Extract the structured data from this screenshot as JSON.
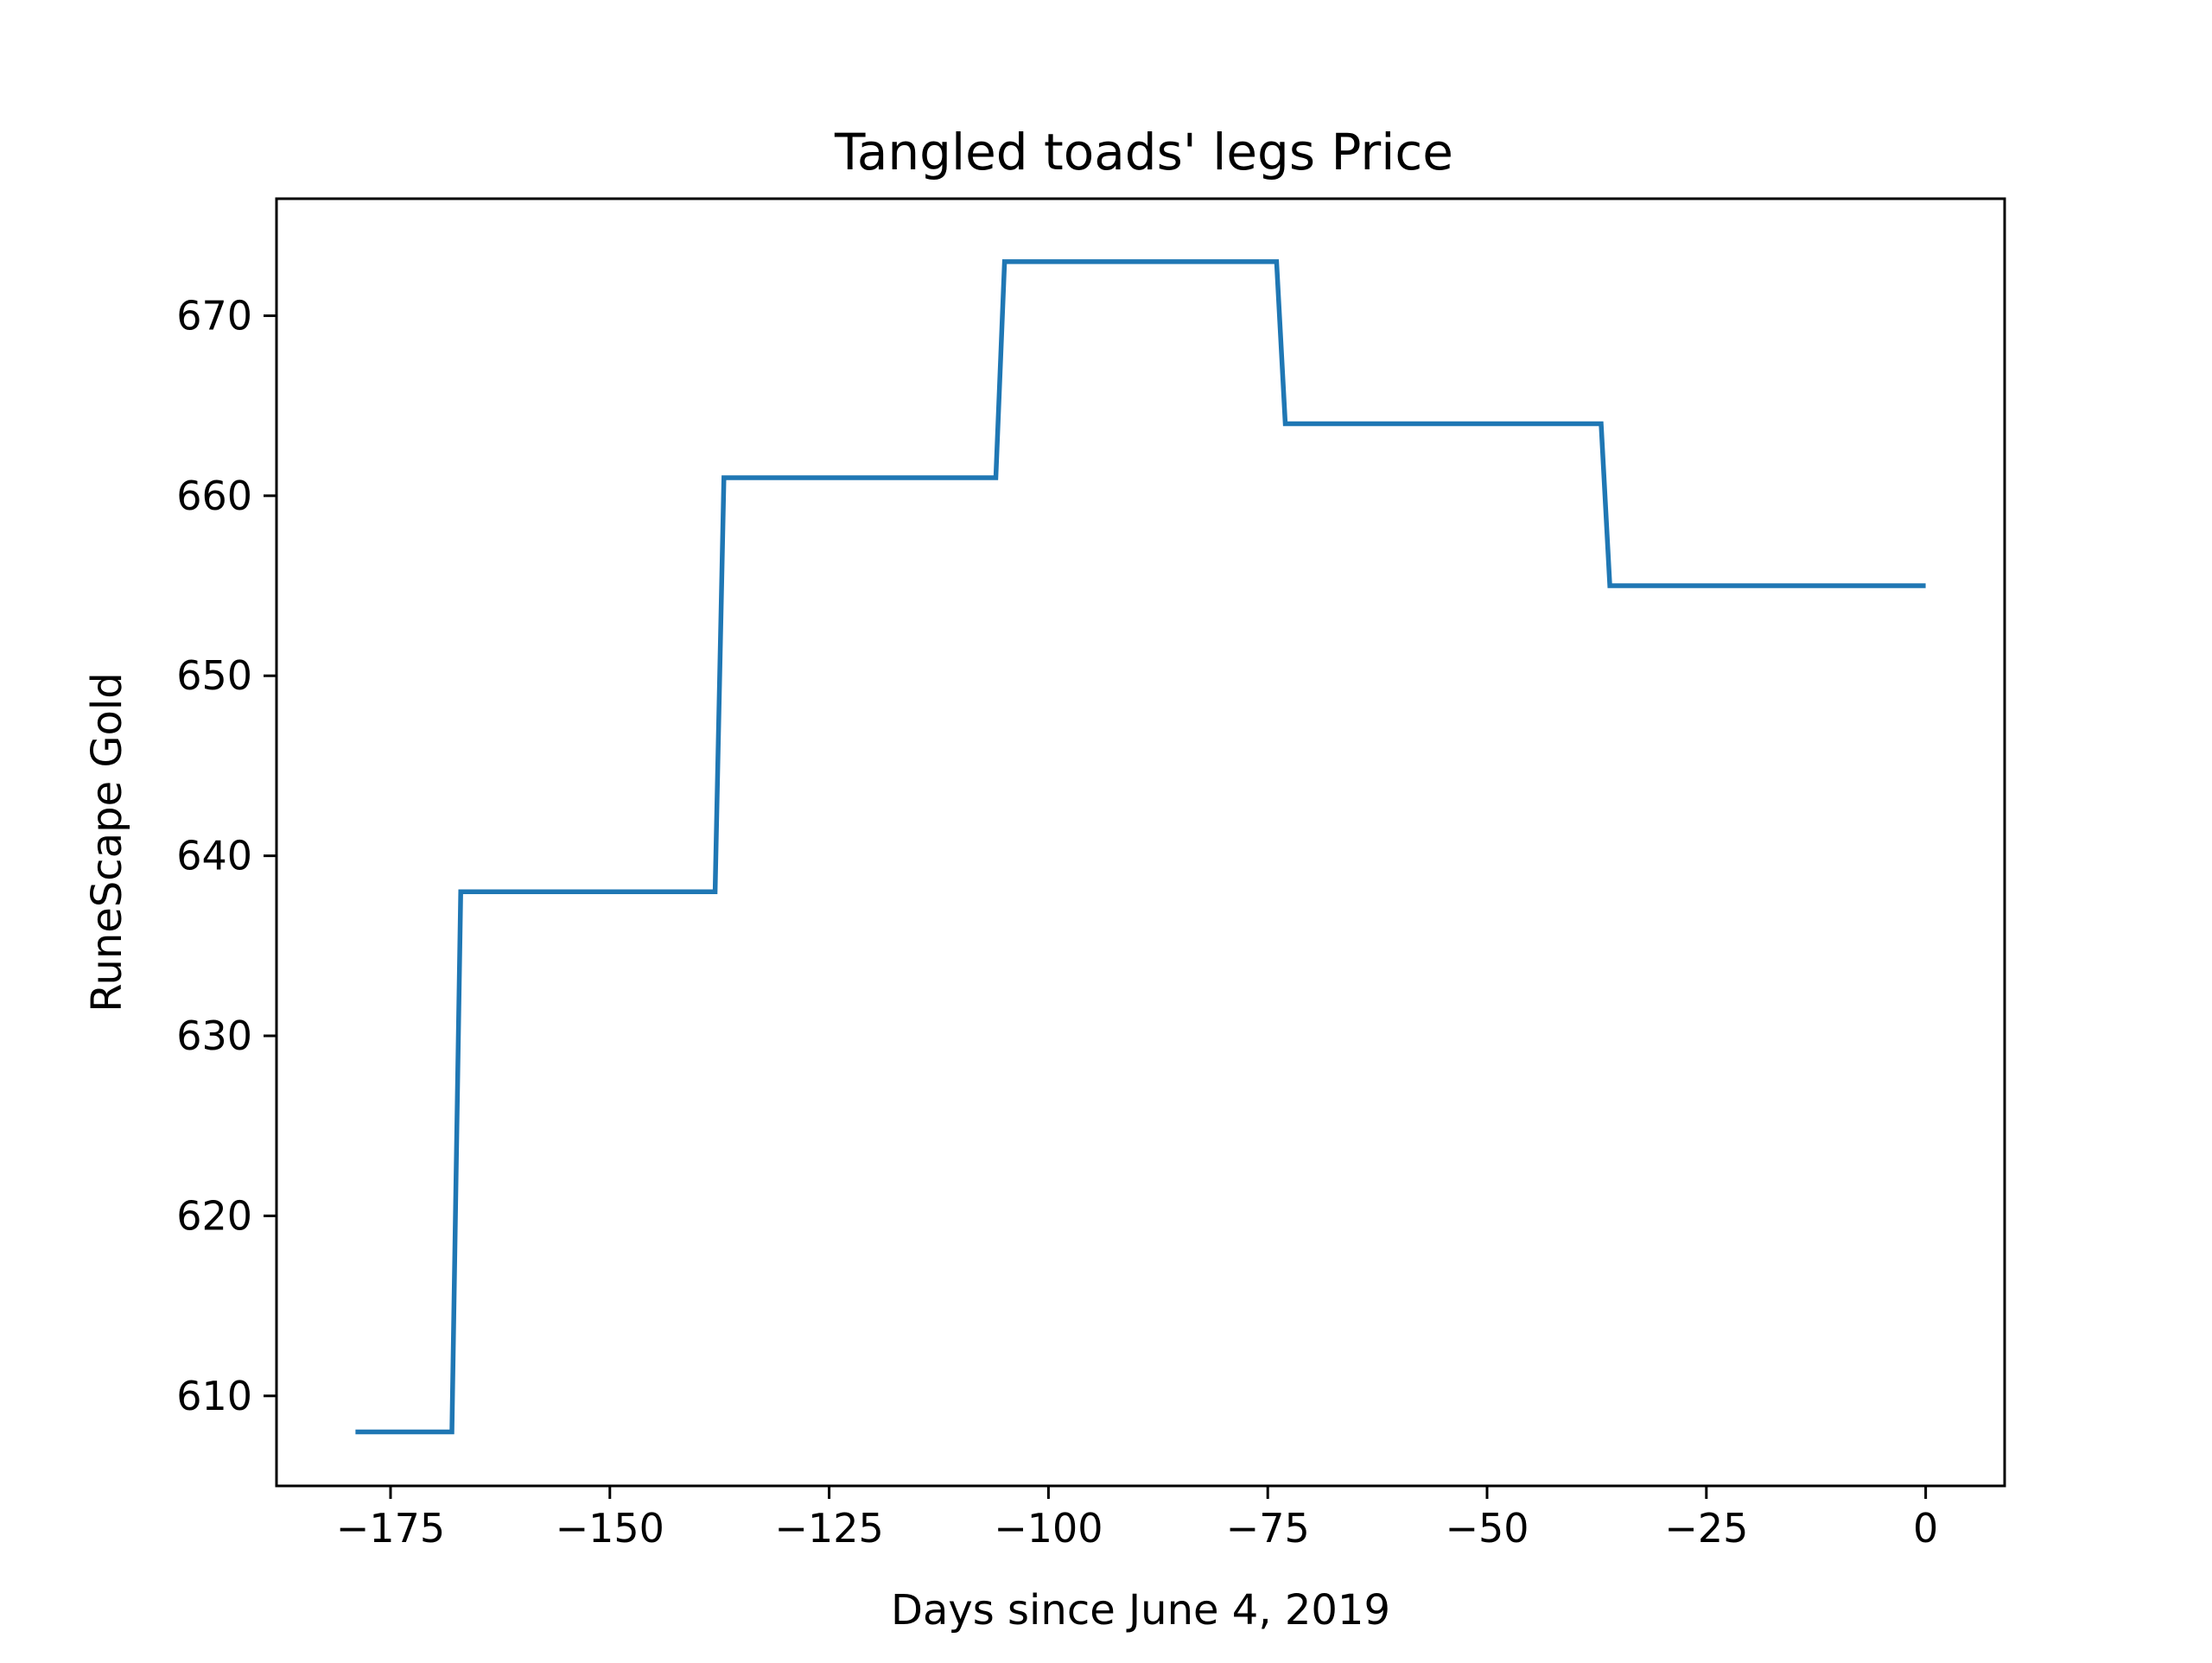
{
  "chart_data": {
    "type": "line",
    "title": "Tangled toads' legs Price",
    "xlabel": "Days since June 4, 2019",
    "ylabel": "RuneScape Gold",
    "xlim": [
      -188,
      9
    ],
    "ylim": [
      605,
      676.5
    ],
    "xticks": [
      {
        "value": -175,
        "label": "−175"
      },
      {
        "value": -150,
        "label": "−150"
      },
      {
        "value": -125,
        "label": "−125"
      },
      {
        "value": -100,
        "label": "−100"
      },
      {
        "value": -75,
        "label": "−75"
      },
      {
        "value": -50,
        "label": "−50"
      },
      {
        "value": -25,
        "label": "−25"
      },
      {
        "value": 0,
        "label": "0"
      }
    ],
    "yticks": [
      {
        "value": 610,
        "label": "610"
      },
      {
        "value": 620,
        "label": "620"
      },
      {
        "value": 630,
        "label": "630"
      },
      {
        "value": 640,
        "label": "640"
      },
      {
        "value": 650,
        "label": "650"
      },
      {
        "value": 660,
        "label": "660"
      },
      {
        "value": 670,
        "label": "670"
      }
    ],
    "grid": false,
    "legend": false,
    "series": [
      {
        "color": "#1f77b4",
        "x": [
          -179,
          -168,
          -167,
          -138,
          -137,
          -106,
          -105,
          -74,
          -73,
          -37,
          -36,
          0
        ],
        "y": [
          608,
          608,
          638,
          638,
          661,
          661,
          673,
          673,
          664,
          664,
          655,
          655
        ]
      }
    ]
  }
}
